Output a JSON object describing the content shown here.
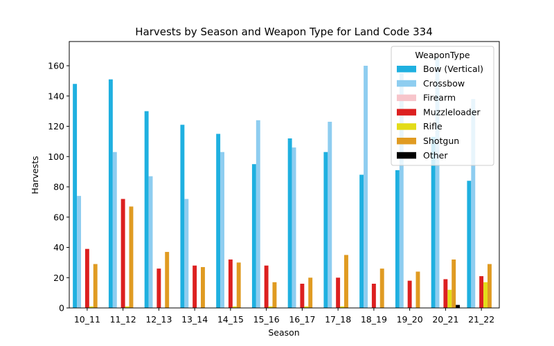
{
  "chart_data": {
    "type": "bar",
    "title": "Harvests by Season and Weapon Type for Land Code 334",
    "xlabel": "Season",
    "ylabel": "Harvests",
    "ylim": [
      0,
      176
    ],
    "yticks": [
      0,
      20,
      40,
      60,
      80,
      100,
      120,
      140,
      160
    ],
    "grid": false,
    "legend": {
      "title": "WeaponType",
      "placement": "top-right"
    },
    "categories": [
      "10_11",
      "11_12",
      "12_13",
      "13_14",
      "14_15",
      "15_16",
      "16_17",
      "17_18",
      "18_19",
      "19_20",
      "20_21",
      "21_22"
    ],
    "series": [
      {
        "name": "Bow (Vertical)",
        "color": "#1fb0e0",
        "values": [
          148,
          151,
          130,
          121,
          115,
          95,
          112,
          103,
          88,
          91,
          113,
          84
        ]
      },
      {
        "name": "Crossbow",
        "color": "#8ecdf0",
        "values": [
          74,
          103,
          87,
          72,
          103,
          124,
          106,
          123,
          160,
          155,
          165,
          138
        ]
      },
      {
        "name": "Firearm",
        "color": "#f7c5cb",
        "values": [
          0,
          0,
          0,
          0,
          0,
          0,
          0,
          0,
          0,
          0,
          0,
          0
        ]
      },
      {
        "name": "Muzzleloader",
        "color": "#dc2020",
        "values": [
          39,
          72,
          26,
          28,
          32,
          28,
          16,
          20,
          16,
          18,
          19,
          21
        ]
      },
      {
        "name": "Rifle",
        "color": "#e3dc18",
        "values": [
          1,
          1,
          0,
          0,
          1,
          1,
          1,
          1,
          0,
          0,
          12,
          17
        ]
      },
      {
        "name": "Shotgun",
        "color": "#e09b22",
        "values": [
          29,
          67,
          37,
          27,
          30,
          17,
          20,
          35,
          26,
          24,
          32,
          29
        ]
      },
      {
        "name": "Other",
        "color": "#000000",
        "values": [
          0,
          0,
          0,
          0,
          0,
          0,
          0,
          0,
          0,
          0,
          2,
          0
        ]
      }
    ]
  }
}
